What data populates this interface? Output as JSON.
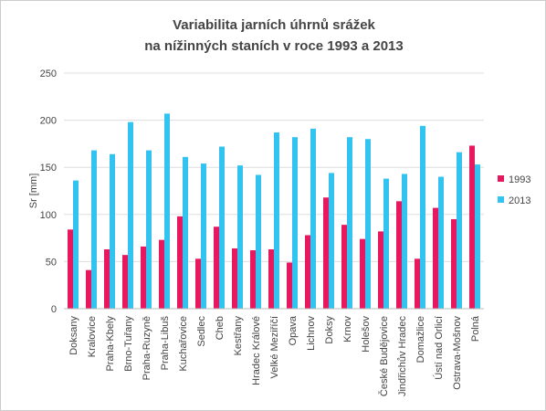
{
  "chart_data": {
    "type": "bar",
    "title": "Variabilita jarních úhrnů srážek",
    "subtitle": "na nížinných staních v roce 1993 a 2013",
    "y_label": "Sr [mm]",
    "categories": [
      "Doksany",
      "Kralovice",
      "Praha-Kbely",
      "Brno-Tuřany",
      "Praha-Ruzyně",
      "Praha-Libuš",
      "Kuchařovice",
      "Sedlec",
      "Cheb",
      "Kestřany",
      "Hradec Králové",
      "Velké Meziříčí",
      "Opava",
      "Lichnov",
      "Doksy",
      "Krnov",
      "Holešov",
      "České Budějovice",
      "Jindřichův Hradec",
      "Domažlice",
      "Ústí nad Orlicí",
      "Ostrava-Mošnov",
      "Polná"
    ],
    "series": [
      {
        "name": "1993",
        "color": "#e6195f",
        "values": [
          84,
          41,
          63,
          57,
          66,
          73,
          98,
          53,
          87,
          64,
          62,
          63,
          49,
          78,
          118,
          89,
          74,
          82,
          114,
          53,
          107,
          95,
          173
        ]
      },
      {
        "name": "2013",
        "color": "#33c3f0",
        "values": [
          136,
          168,
          164,
          198,
          168,
          207,
          161,
          154,
          172,
          152,
          142,
          187,
          182,
          191,
          144,
          182,
          180,
          138,
          143,
          194,
          140,
          166,
          153
        ]
      }
    ],
    "ylim": [
      0,
      250
    ],
    "yticks": [
      0,
      50,
      100,
      150,
      200,
      250
    ],
    "legend": "right"
  }
}
